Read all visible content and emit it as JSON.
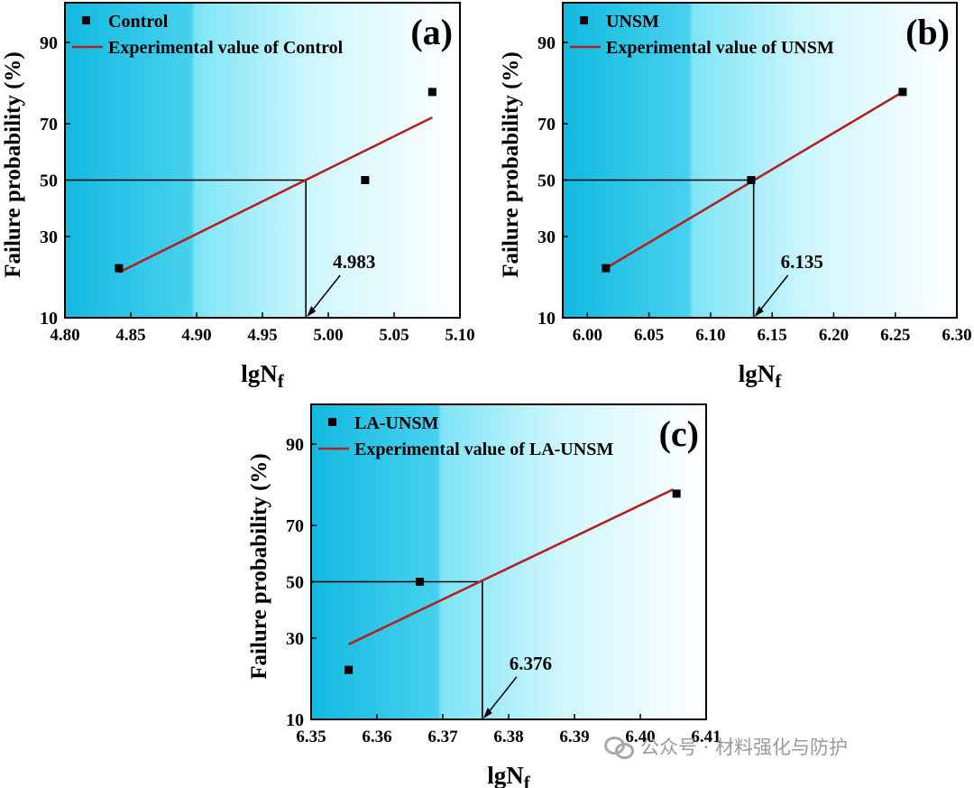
{
  "chart_data": [
    {
      "type": "scatter",
      "panel_label": "(a)",
      "xlabel": "lgN",
      "xlabel_sub": "f",
      "ylabel": "Failure probability (%)",
      "xlim": [
        4.8,
        5.1
      ],
      "xticks": [
        "4.80",
        "4.85",
        "4.90",
        "4.95",
        "5.00",
        "5.05",
        "5.10"
      ],
      "ylim": [
        10,
        100
      ],
      "yticks": [
        "10",
        "30",
        "50",
        "70",
        "90"
      ],
      "y_scale": "probability",
      "legend_placement": "top-left",
      "series": [
        {
          "name": "Control",
          "kind": "points",
          "color": "#000000",
          "x": [
            4.841,
            5.028,
            5.079
          ],
          "y": [
            20.6,
            50.0,
            79.4
          ]
        },
        {
          "name": "Experimental value of Control",
          "kind": "line",
          "color": "#b22222",
          "x": [
            4.841,
            5.079
          ],
          "y": [
            19.5,
            72.0
          ]
        }
      ],
      "annotation": {
        "text": "4.983",
        "x": 4.983,
        "y": 50
      }
    },
    {
      "type": "scatter",
      "panel_label": "(b)",
      "xlabel": "lgN",
      "xlabel_sub": "f",
      "ylabel": "Failure probability (%)",
      "xlim": [
        5.98,
        6.3
      ],
      "xticks": [
        "6.00",
        "6.05",
        "6.10",
        "6.15",
        "6.20",
        "6.25",
        "6.30"
      ],
      "ylim": [
        10,
        100
      ],
      "yticks": [
        "10",
        "30",
        "50",
        "70",
        "90"
      ],
      "y_scale": "probability",
      "legend_placement": "top-left",
      "series": [
        {
          "name": "UNSM",
          "kind": "points",
          "color": "#000000",
          "x": [
            6.015,
            6.133,
            6.256
          ],
          "y": [
            20.6,
            50.0,
            79.4
          ]
        },
        {
          "name": "Experimental value of UNSM",
          "kind": "line",
          "color": "#b22222",
          "x": [
            6.015,
            6.256
          ],
          "y": [
            20.6,
            79.4
          ]
        }
      ],
      "annotation": {
        "text": "6.135",
        "x": 6.135,
        "y": 50
      }
    },
    {
      "type": "scatter",
      "panel_label": "(c)",
      "xlabel": "lgN",
      "xlabel_sub": "f",
      "ylabel": "Failure probability (%)",
      "xlim": [
        6.35,
        6.41
      ],
      "xticks": [
        "6.35",
        "6.36",
        "6.37",
        "6.38",
        "6.39",
        "6.40",
        "6.41"
      ],
      "ylim": [
        10,
        100
      ],
      "yticks": [
        "10",
        "30",
        "50",
        "70",
        "90"
      ],
      "y_scale": "probability",
      "legend_placement": "top-left",
      "series": [
        {
          "name": "LA-UNSM",
          "kind": "points",
          "color": "#000000",
          "x": [
            6.3557,
            6.3665,
            6.4055
          ],
          "y": [
            20.6,
            50.0,
            79.4
          ]
        },
        {
          "name": "Experimental value of LA-UNSM",
          "kind": "line",
          "color": "#b22222",
          "x": [
            6.3557,
            6.405
          ],
          "y": [
            28.0,
            80.5
          ]
        }
      ],
      "annotation": {
        "text": "6.376",
        "x": 6.376,
        "y": 50
      }
    }
  ],
  "watermark": {
    "text": "公众号 · 材料强化与防护"
  }
}
